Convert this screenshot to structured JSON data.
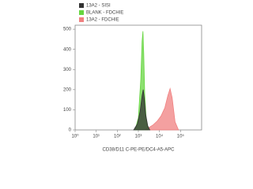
{
  "chart_data": {
    "type": "area",
    "xlabel": "CD38/D11 C-PE-PE/DC4-A5-APC",
    "xscale": "log",
    "xlim": [
      1,
      1000000
    ],
    "xticks": [
      {
        "value": 1,
        "label": "10⁰"
      },
      {
        "value": 10,
        "label": "10¹"
      },
      {
        "value": 100,
        "label": "10²"
      },
      {
        "value": 1000,
        "label": "10³"
      },
      {
        "value": 10000,
        "label": "10⁴"
      },
      {
        "value": 100000,
        "label": "10⁵"
      }
    ],
    "ylim": [
      0,
      520
    ],
    "yticks": [
      0,
      100,
      200,
      300,
      400,
      500
    ],
    "legend": "top-left",
    "series": [
      {
        "name": "13A2 - FDCHIE",
        "color": "#f08080",
        "x": [
          2000,
          3000,
          5000,
          8000,
          12000,
          18000,
          25000,
          32000,
          40000,
          55000,
          80000
        ],
        "values": [
          0,
          10,
          25,
          45,
          70,
          110,
          170,
          205,
          160,
          40,
          0
        ]
      },
      {
        "name": "BLANK - FDCHIE",
        "color": "#66d640",
        "x": [
          700,
          1000,
          1300,
          1500,
          1650,
          1800,
          2000,
          2400,
          3000
        ],
        "values": [
          0,
          60,
          250,
          440,
          490,
          380,
          180,
          40,
          0
        ]
      },
      {
        "name": "13A2 - SISI",
        "color": "#333333",
        "x": [
          600,
          900,
          1200,
          1500,
          1700,
          1900,
          2200,
          2800,
          3500
        ],
        "values": [
          0,
          30,
          90,
          170,
          200,
          160,
          80,
          20,
          0
        ]
      }
    ]
  }
}
